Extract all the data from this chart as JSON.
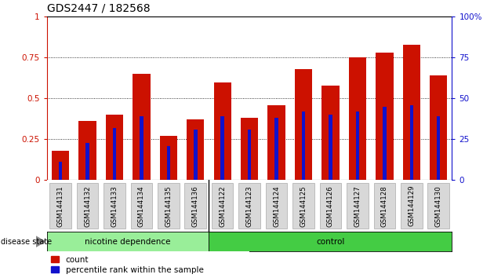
{
  "title": "GDS2447 / 182568",
  "categories": [
    "GSM144131",
    "GSM144132",
    "GSM144133",
    "GSM144134",
    "GSM144135",
    "GSM144136",
    "GSM144122",
    "GSM144123",
    "GSM144124",
    "GSM144125",
    "GSM144126",
    "GSM144127",
    "GSM144128",
    "GSM144129",
    "GSM144130"
  ],
  "count_values": [
    0.18,
    0.36,
    0.4,
    0.65,
    0.27,
    0.37,
    0.6,
    0.38,
    0.46,
    0.68,
    0.58,
    0.75,
    0.78,
    0.83,
    0.64
  ],
  "percentile_values": [
    0.11,
    0.23,
    0.32,
    0.39,
    0.21,
    0.31,
    0.39,
    0.31,
    0.38,
    0.42,
    0.4,
    0.42,
    0.45,
    0.46,
    0.39
  ],
  "bar_color": "#cc1100",
  "percentile_color": "#1111cc",
  "ylim": [
    0,
    1.0
  ],
  "yticks": [
    0,
    0.25,
    0.5,
    0.75,
    1.0
  ],
  "ytick_labels_left": [
    "0",
    "0.25",
    "0.5",
    "0.75",
    "1"
  ],
  "ytick_labels_right": [
    "0",
    "25",
    "50",
    "75",
    "100%"
  ],
  "group1_label": "nicotine dependence",
  "group2_label": "control",
  "group1_count": 6,
  "group2_count": 9,
  "group1_color": "#99ee99",
  "group2_color": "#44cc44",
  "disease_state_label": "disease state",
  "legend_count_label": "count",
  "legend_percentile_label": "percentile rank within the sample",
  "bg_color": "#ffffff",
  "title_fontsize": 10,
  "tick_label_fontsize": 7.5,
  "bar_width": 0.65,
  "pct_bar_width": 0.13
}
